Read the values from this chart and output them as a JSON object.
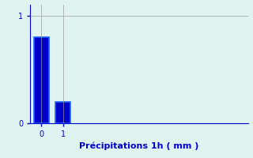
{
  "categories": [
    0,
    1
  ],
  "values": [
    0.8,
    0.2
  ],
  "bar_color": "#0000cc",
  "bar_edge_color": "#1a66ff",
  "xlabel": "Précipitations 1h ( mm )",
  "ylim": [
    0,
    1.1
  ],
  "xlim": [
    -0.5,
    9.5
  ],
  "yticks": [
    0,
    1
  ],
  "xticks": [
    0,
    1
  ],
  "background_color": "#dff4f0",
  "grid_color": "#999999",
  "label_color": "#0000cc",
  "tick_fontsize": 7,
  "xlabel_fontsize": 8,
  "bar_width": 0.7
}
